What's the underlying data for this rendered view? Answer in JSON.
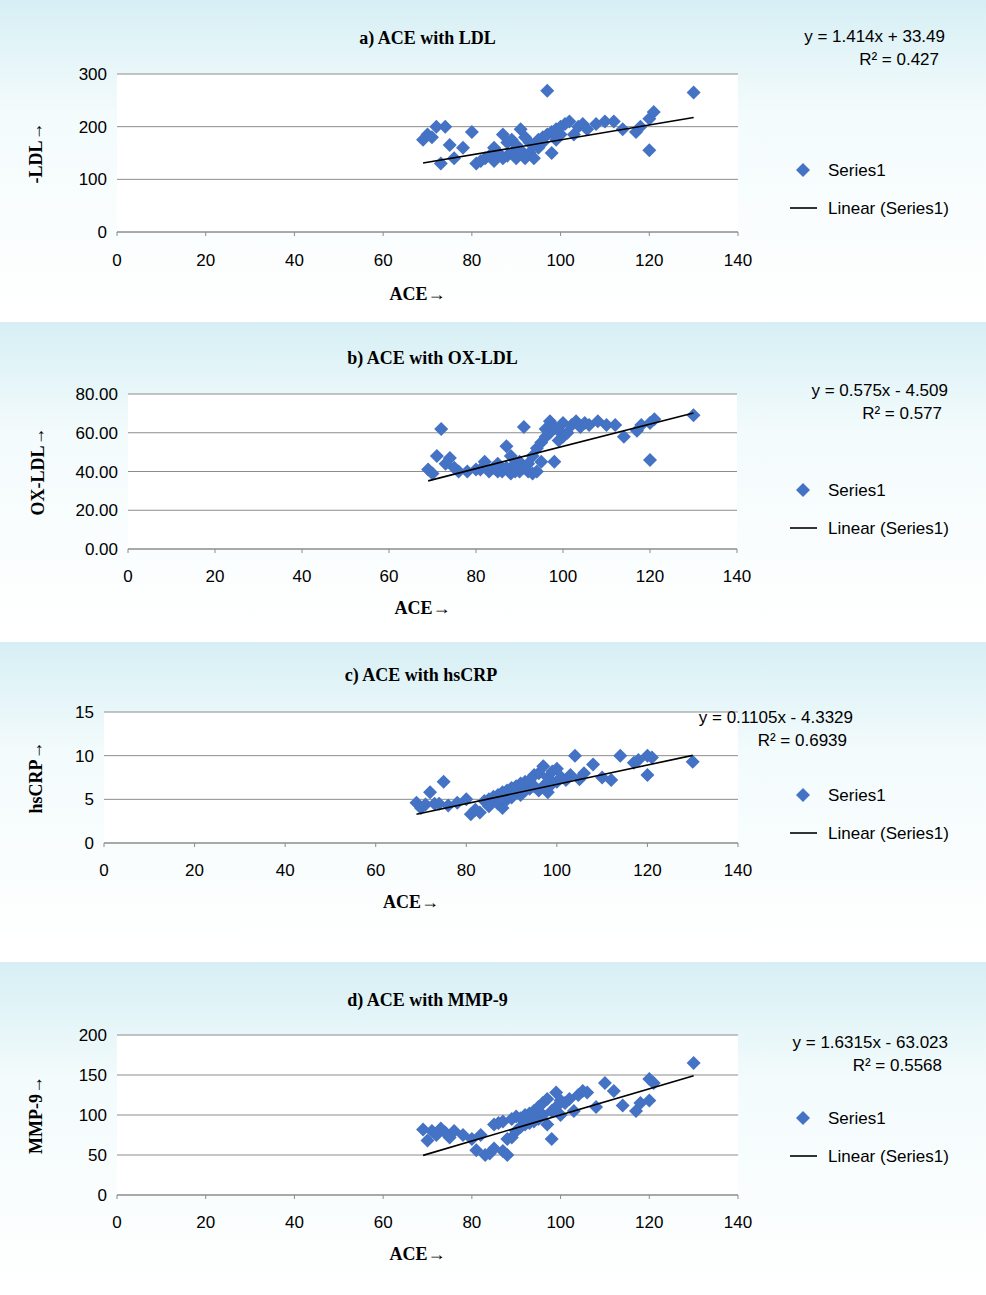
{
  "chart_data": [
    {
      "type": "scatter",
      "title": "a) ACE with LDL",
      "x_label": "ACE→",
      "y_label": "-LDL→",
      "xlim": [
        0,
        140
      ],
      "xticks": [
        0,
        20,
        40,
        60,
        80,
        100,
        120,
        140
      ],
      "ylim": [
        0,
        300
      ],
      "yticks": [
        0,
        100,
        200,
        300
      ],
      "grid": true,
      "legend": "right",
      "series": [
        {
          "name": "Series1",
          "color": "#4472c4",
          "marker": "diamond",
          "x": [
            69,
            70,
            71,
            72,
            73,
            74,
            75,
            76,
            78,
            80,
            81,
            82,
            83,
            84,
            85,
            85,
            86,
            87,
            87,
            88,
            88,
            89,
            89,
            90,
            90,
            91,
            91,
            92,
            92,
            93,
            93,
            94,
            94,
            95,
            95,
            96,
            96,
            97,
            97,
            98,
            98,
            99,
            99,
            100,
            100,
            101,
            102,
            103,
            104,
            105,
            106,
            108,
            110,
            112,
            114,
            117,
            118,
            120,
            120,
            121,
            130
          ],
          "values": [
            175,
            185,
            180,
            200,
            130,
            200,
            165,
            140,
            160,
            190,
            130,
            135,
            140,
            145,
            135,
            160,
            150,
            185,
            140,
            170,
            145,
            175,
            150,
            140,
            165,
            195,
            155,
            140,
            180,
            150,
            170,
            140,
            165,
            175,
            160,
            180,
            170,
            268,
            185,
            150,
            190,
            175,
            195,
            200,
            185,
            205,
            210,
            185,
            200,
            205,
            195,
            205,
            210,
            210,
            195,
            190,
            200,
            155,
            215,
            228,
            265
          ]
        },
        {
          "name": "Linear (Series1)",
          "type": "trendline",
          "color": "#000000",
          "line_style": "solid",
          "slope": 1.414,
          "intercept": 33.49,
          "equation": "y = 1.414x + 33.49",
          "r_squared": "R² = 0.427"
        }
      ]
    },
    {
      "type": "scatter",
      "title": "b) ACE with OX-LDL",
      "x_label": "ACE→",
      "y_label": "OX-LDL→",
      "xlim": [
        0,
        140
      ],
      "xticks": [
        0,
        20,
        40,
        60,
        80,
        100,
        120,
        140
      ],
      "ylim": [
        0,
        80
      ],
      "yticks": [
        {
          "value": 0,
          "label": "0.00"
        },
        {
          "value": 20,
          "label": "20.00"
        },
        {
          "value": 40,
          "label": "40.00"
        },
        {
          "value": 60,
          "label": "60.00"
        },
        {
          "value": 80,
          "label": "80.00"
        }
      ],
      "grid": true,
      "legend": "right",
      "series": [
        {
          "name": "Series1",
          "color": "#4472c4",
          "marker": "diamond",
          "x": [
            69,
            70,
            71,
            72,
            73,
            74,
            75,
            76,
            78,
            80,
            81,
            82,
            83,
            84,
            85,
            85,
            86,
            87,
            87,
            88,
            88,
            89,
            89,
            90,
            90,
            91,
            91,
            92,
            92,
            93,
            93,
            94,
            94,
            95,
            95,
            96,
            96,
            97,
            97,
            98,
            98,
            99,
            99,
            100,
            100,
            101,
            102,
            103,
            104,
            105,
            106,
            108,
            110,
            112,
            114,
            117,
            118,
            120,
            120,
            121,
            130
          ],
          "values": [
            41,
            39,
            48,
            62,
            44,
            47,
            42,
            40,
            40,
            41,
            41,
            45,
            40,
            42,
            40,
            44,
            40,
            53,
            42,
            48,
            39,
            40,
            44,
            40,
            45,
            42,
            63,
            40,
            44,
            39,
            48,
            40,
            52,
            55,
            45,
            58,
            62,
            66,
            60,
            45,
            63,
            56,
            61,
            65,
            58,
            60,
            64,
            66,
            63,
            65,
            64,
            66,
            64,
            64,
            58,
            61,
            64,
            46,
            65,
            67,
            69
          ]
        },
        {
          "name": "Linear (Series1)",
          "type": "trendline",
          "color": "#000000",
          "line_style": "solid",
          "slope": 0.575,
          "intercept": -4.509,
          "equation": "y = 0.575x - 4.509",
          "r_squared": "R² = 0.577"
        }
      ]
    },
    {
      "type": "scatter",
      "title": "c) ACE with hsCRP",
      "x_label": "ACE→",
      "y_label": "hsCRP→",
      "xlim": [
        0,
        140
      ],
      "xticks": [
        0,
        20,
        40,
        60,
        80,
        100,
        120,
        140
      ],
      "ylim": [
        0,
        15
      ],
      "yticks": [
        0,
        5,
        10,
        15
      ],
      "grid": true,
      "legend": "right",
      "series": [
        {
          "name": "Series1",
          "color": "#4472c4",
          "marker": "diamond",
          "x": [
            69,
            70,
            71,
            72,
            73,
            74,
            75,
            76,
            78,
            80,
            81,
            82,
            83,
            84,
            85,
            85,
            86,
            87,
            87,
            88,
            88,
            89,
            89,
            90,
            90,
            91,
            91,
            92,
            92,
            93,
            93,
            94,
            94,
            95,
            95,
            96,
            96,
            97,
            97,
            98,
            98,
            99,
            99,
            100,
            100,
            101,
            102,
            103,
            104,
            105,
            106,
            108,
            110,
            112,
            114,
            117,
            118,
            120,
            120,
            121,
            130
          ],
          "values": [
            4.6,
            4.0,
            4.4,
            5.8,
            4.5,
            4.5,
            7.0,
            4.3,
            4.6,
            5.0,
            3.3,
            3.8,
            3.5,
            4.8,
            5.0,
            4.2,
            5.3,
            4.5,
            5.5,
            4.0,
            5.8,
            5.0,
            6.0,
            5.2,
            6.3,
            5.8,
            6.5,
            5.5,
            6.8,
            6.0,
            7.0,
            6.2,
            7.2,
            6.5,
            7.8,
            8.0,
            6.0,
            8.8,
            6.5,
            7.5,
            5.8,
            8.2,
            6.8,
            7.0,
            8.5,
            7.5,
            7.2,
            7.8,
            10.0,
            7.3,
            8.0,
            9.0,
            7.5,
            7.2,
            10.0,
            9.2,
            9.5,
            7.8,
            10.0,
            9.8,
            9.3
          ]
        },
        {
          "name": "Linear (Series1)",
          "type": "trendline",
          "color": "#000000",
          "line_style": "solid",
          "slope": 0.1105,
          "intercept": -4.3329,
          "equation": "y = 0.1105x - 4.3329",
          "r_squared": "R² = 0.6939"
        }
      ]
    },
    {
      "type": "scatter",
      "title": "d) ACE with MMP-9",
      "x_label": "ACE→",
      "y_label": "MMP-9→",
      "xlim": [
        0,
        140
      ],
      "xticks": [
        0,
        20,
        40,
        60,
        80,
        100,
        120,
        140
      ],
      "ylim": [
        0,
        200
      ],
      "yticks": [
        0,
        50,
        100,
        150,
        200
      ],
      "grid": true,
      "legend": "right",
      "series": [
        {
          "name": "Series1",
          "color": "#4472c4",
          "marker": "diamond",
          "x": [
            69,
            70,
            71,
            72,
            73,
            74,
            75,
            76,
            78,
            80,
            81,
            82,
            83,
            84,
            85,
            85,
            86,
            87,
            87,
            88,
            88,
            89,
            89,
            90,
            90,
            91,
            91,
            92,
            92,
            93,
            93,
            94,
            94,
            95,
            95,
            96,
            96,
            97,
            97,
            98,
            98,
            99,
            99,
            100,
            100,
            101,
            102,
            103,
            104,
            105,
            106,
            108,
            110,
            112,
            114,
            117,
            118,
            120,
            120,
            121,
            130
          ],
          "values": [
            82,
            68,
            80,
            75,
            83,
            78,
            72,
            80,
            75,
            70,
            56,
            75,
            50,
            52,
            88,
            58,
            90,
            55,
            92,
            70,
            50,
            95,
            72,
            98,
            80,
            85,
            96,
            88,
            100,
            90,
            102,
            92,
            105,
            95,
            110,
            100,
            115,
            88,
            120,
            105,
            70,
            128,
            110,
            100,
            118,
            115,
            120,
            105,
            125,
            130,
            128,
            110,
            140,
            130,
            112,
            105,
            115,
            145,
            118,
            140,
            165
          ]
        },
        {
          "name": "Linear (Series1)",
          "type": "trendline",
          "color": "#000000",
          "line_style": "solid",
          "slope": 1.6315,
          "intercept": -63.023,
          "equation": "y = 1.6315x - 63.023",
          "r_squared": "R² = 0.5568"
        }
      ]
    }
  ]
}
